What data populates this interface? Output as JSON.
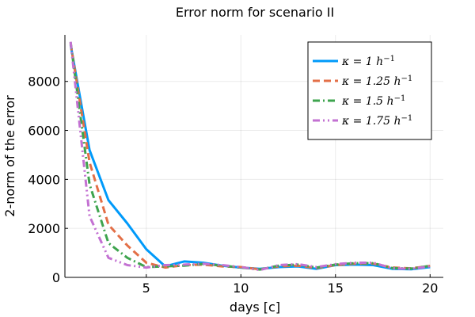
{
  "chart_data": {
    "type": "line",
    "title": "Error norm for scenario II",
    "xlabel": "days [c]",
    "ylabel": "2-norm of the error",
    "xlim": [
      0.7,
      20.7
    ],
    "ylim": [
      0,
      9900
    ],
    "xticks": [
      5,
      10,
      15,
      20
    ],
    "yticks": [
      0,
      2000,
      4000,
      6000,
      8000
    ],
    "grid": true,
    "legend": "top-right",
    "x": [
      1,
      2,
      3,
      4,
      5,
      6,
      7,
      8,
      9,
      10,
      11,
      12,
      13,
      14,
      15,
      16,
      17,
      18,
      19,
      20
    ],
    "series": [
      {
        "name": "κ = 1 h⁻¹",
        "color": "#009AFA",
        "dash": "solid",
        "values": [
          9500,
          5200,
          3150,
          2200,
          1150,
          450,
          650,
          600,
          480,
          400,
          350,
          420,
          450,
          350,
          500,
          520,
          500,
          350,
          330,
          420
        ]
      },
      {
        "name": "κ = 1.25 h⁻¹",
        "color": "#E36F47",
        "dash": "dash",
        "values": [
          9550,
          4700,
          2150,
          1300,
          600,
          400,
          500,
          520,
          450,
          420,
          330,
          450,
          480,
          380,
          500,
          560,
          560,
          400,
          370,
          470
        ]
      },
      {
        "name": "κ = 1.5 h⁻¹",
        "color": "#3EA44E",
        "dash": "dashdot",
        "values": [
          9600,
          3800,
          1400,
          800,
          420,
          450,
          480,
          550,
          480,
          400,
          320,
          480,
          520,
          400,
          520,
          580,
          580,
          380,
          360,
          470
        ]
      },
      {
        "name": "κ = 1.75 h⁻¹",
        "color": "#C371D2",
        "dash": "dashdotdot",
        "values": [
          9620,
          2500,
          800,
          500,
          400,
          500,
          520,
          560,
          500,
          420,
          300,
          500,
          540,
          420,
          540,
          600,
          600,
          370,
          350,
          450
        ]
      }
    ],
    "legend_entries": [
      {
        "base": "κ = 1",
        "unit": "h",
        "exp": "−1"
      },
      {
        "base": "κ = 1.25",
        "unit": "h",
        "exp": "−1"
      },
      {
        "base": "κ = 1.5",
        "unit": "h",
        "exp": "−1"
      },
      {
        "base": "κ = 1.75",
        "unit": "h",
        "exp": "−1"
      }
    ]
  }
}
